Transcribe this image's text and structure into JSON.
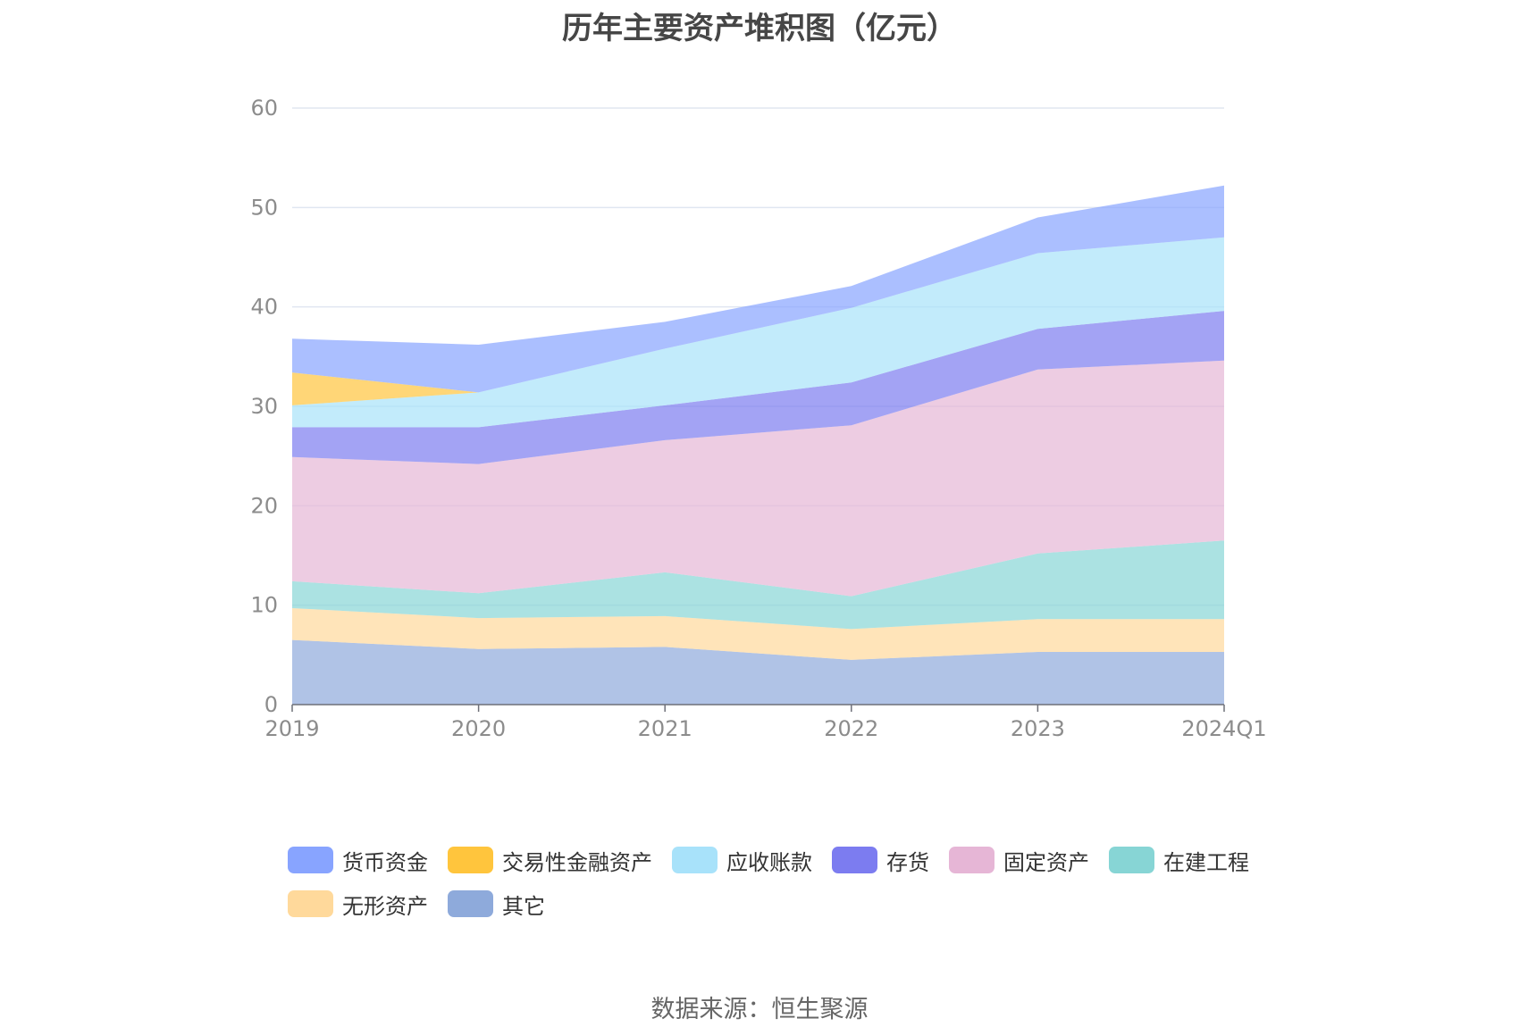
{
  "title": "历年主要资产堆积图（亿元）",
  "source": "数据来源：恒生聚源",
  "chart_data": {
    "type": "area",
    "stacked": true,
    "title": "历年主要资产堆积图（亿元）",
    "categories": [
      "2019",
      "2020",
      "2021",
      "2022",
      "2023",
      "2024Q1"
    ],
    "y_ticks": [
      "0",
      "10",
      "20",
      "30",
      "40",
      "50",
      "60"
    ],
    "ylim": [
      0,
      60
    ],
    "grid": true,
    "legend_position": "bottom",
    "series": [
      {
        "name": "其它",
        "color": "#8eaadb",
        "values": [
          6.5,
          5.6,
          5.8,
          4.5,
          5.3,
          5.3
        ]
      },
      {
        "name": "无形资产",
        "color": "#ffd99b",
        "values": [
          3.2,
          3.1,
          3.1,
          3.1,
          3.3,
          3.3
        ]
      },
      {
        "name": "在建工程",
        "color": "#87d5d5",
        "values": [
          2.7,
          2.5,
          4.4,
          3.3,
          6.6,
          7.9
        ]
      },
      {
        "name": "固定资产",
        "color": "#e6b6d6",
        "values": [
          12.5,
          13.0,
          13.3,
          17.2,
          18.5,
          18.1
        ]
      },
      {
        "name": "存货",
        "color": "#7c7cf0",
        "values": [
          3.0,
          3.7,
          3.5,
          4.3,
          4.1,
          5.0
        ]
      },
      {
        "name": "应收账款",
        "color": "#a8e2fa",
        "values": [
          2.2,
          3.5,
          5.7,
          7.5,
          7.6,
          7.4
        ]
      },
      {
        "name": "交易性金融资产",
        "color": "#ffc53d",
        "values": [
          3.3,
          0.0,
          0.0,
          0.0,
          0.0,
          0.0
        ]
      },
      {
        "name": "货币资金",
        "color": "#88a4ff",
        "values": [
          3.4,
          4.8,
          2.7,
          2.2,
          3.6,
          5.2
        ]
      }
    ]
  },
  "legend": [
    {
      "name": "货币资金",
      "color": "#88a4ff"
    },
    {
      "name": "交易性金融资产",
      "color": "#ffc53d"
    },
    {
      "name": "应收账款",
      "color": "#a8e2fa"
    },
    {
      "name": "存货",
      "color": "#7c7cf0"
    },
    {
      "name": "固定资产",
      "color": "#e6b6d6"
    },
    {
      "name": "在建工程",
      "color": "#87d5d5"
    },
    {
      "name": "无形资产",
      "color": "#ffd99b"
    },
    {
      "name": "其它",
      "color": "#8eaadb"
    }
  ]
}
